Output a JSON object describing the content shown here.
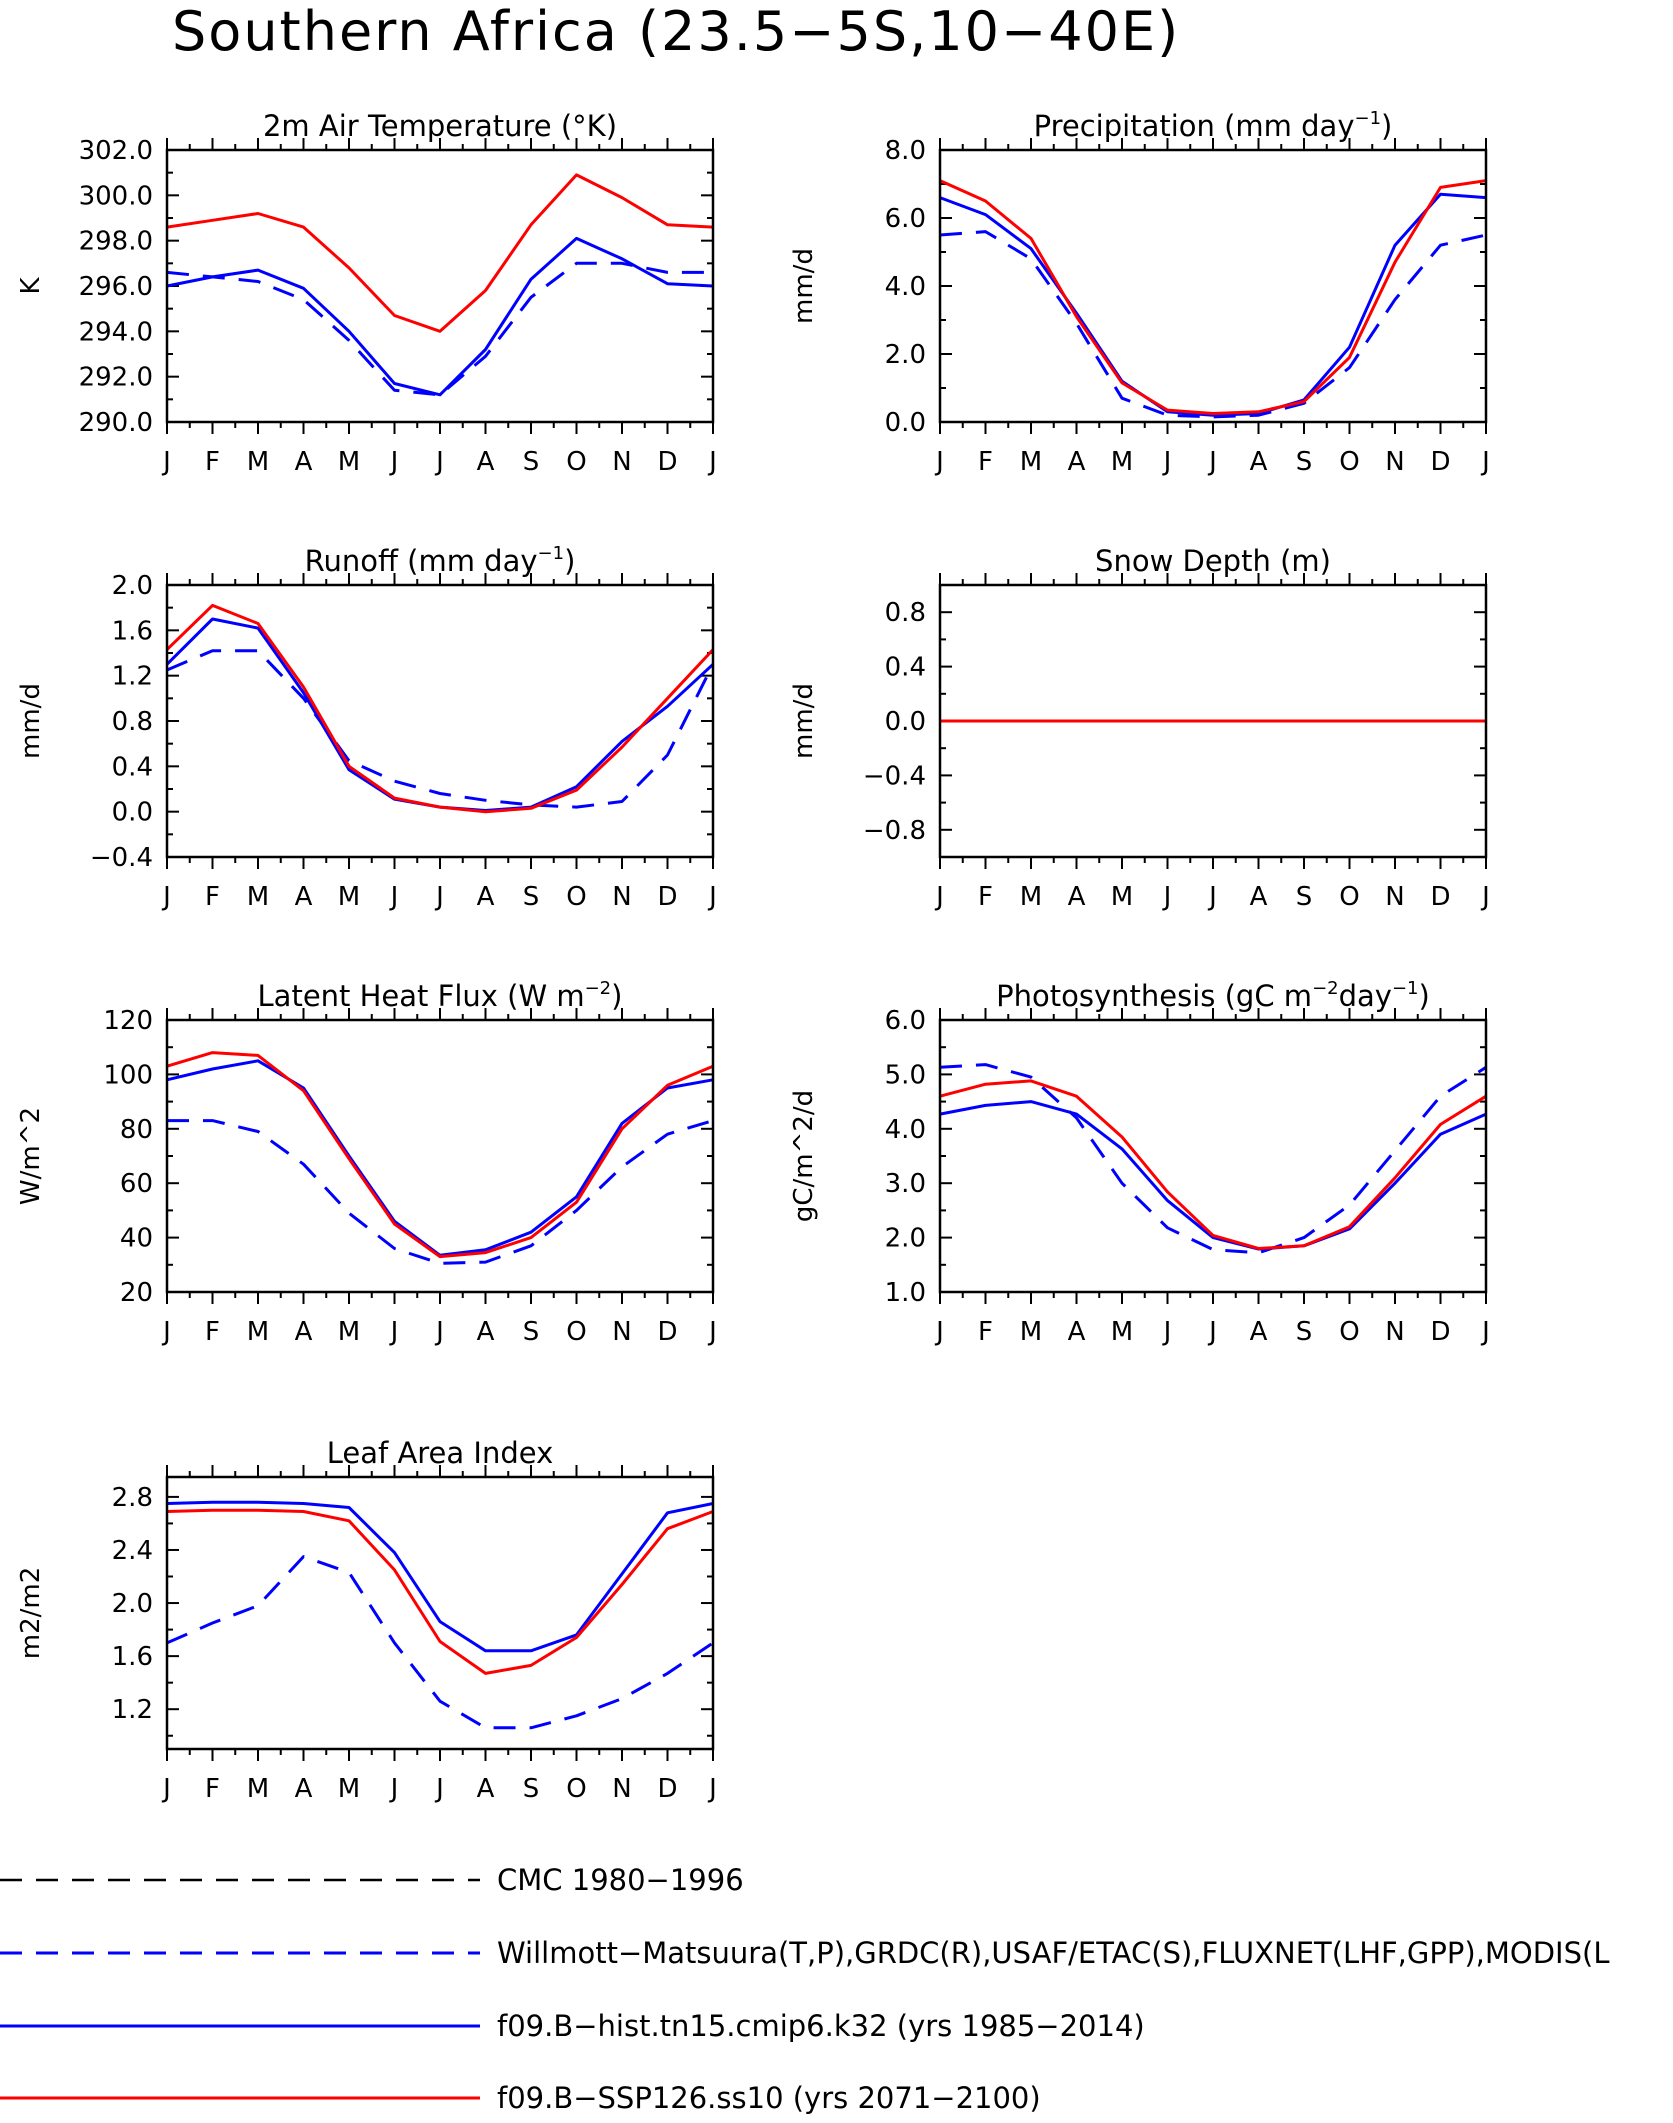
{
  "figure": {
    "title": "Southern Africa (23.5-5S,10-40E)"
  },
  "colors": {
    "obs": "#0000ff",
    "hist": "#0000ff",
    "ssp": "#ff0000",
    "cmc": "#000000"
  },
  "months": [
    "J",
    "F",
    "M",
    "A",
    "M",
    "J",
    "J",
    "A",
    "S",
    "O",
    "N",
    "D",
    "J"
  ],
  "chart_data": [
    {
      "id": "tas",
      "type": "line",
      "title": "2m Air Temperature (°K)",
      "ylabel": "K",
      "ylim": [
        290,
        302
      ],
      "yticks": [
        290,
        292,
        294,
        296,
        298,
        300,
        302
      ],
      "ytick_labels": [
        "290.0",
        "292.0",
        "294.0",
        "296.0",
        "298.0",
        "300.0",
        "302.0"
      ],
      "x": [
        "J",
        "F",
        "M",
        "A",
        "M",
        "J",
        "J",
        "A",
        "S",
        "O",
        "N",
        "D",
        "J"
      ],
      "series": [
        {
          "name": "Willmott-Matsuura(T,P),GRDC(R),USAF/ETAC(S),FLUXNET(LHF,GPP),MODIS(L",
          "style": "obs",
          "values": [
            296.6,
            296.4,
            296.2,
            295.4,
            293.6,
            291.4,
            291.2,
            292.9,
            295.5,
            297.0,
            297.0,
            296.6,
            296.6
          ]
        },
        {
          "name": "f09.B-hist.tn15.cmip6.k32 (yrs 1985-2014)",
          "style": "hist",
          "values": [
            296.0,
            296.4,
            296.7,
            295.9,
            294.0,
            291.7,
            291.2,
            293.2,
            296.3,
            298.1,
            297.2,
            296.1,
            296.0
          ]
        },
        {
          "name": "f09.B-SSP126.ss10 (yrs 2071-2100)",
          "style": "ssp",
          "values": [
            298.6,
            298.9,
            299.2,
            298.6,
            296.8,
            294.7,
            294.0,
            295.8,
            298.7,
            300.9,
            299.9,
            298.7,
            298.6
          ]
        }
      ]
    },
    {
      "id": "pr",
      "type": "line",
      "title": "Precipitation (mm day",
      "title_sup": "-1",
      "title_end": ")",
      "ylabel": "mm/d",
      "ylim": [
        0,
        8
      ],
      "yticks": [
        0,
        2,
        4,
        6,
        8
      ],
      "ytick_labels": [
        "0.0",
        "2.0",
        "4.0",
        "6.0",
        "8.0"
      ],
      "x": [
        "J",
        "F",
        "M",
        "A",
        "M",
        "J",
        "J",
        "A",
        "S",
        "O",
        "N",
        "D",
        "J"
      ],
      "series": [
        {
          "name": "Willmott-Matsuura(T,P),GRDC(R),USAF/ETAC(S),FLUXNET(LHF,GPP),MODIS(L",
          "style": "obs",
          "values": [
            5.5,
            5.6,
            4.8,
            2.9,
            0.7,
            0.2,
            0.15,
            0.2,
            0.55,
            1.6,
            3.6,
            5.2,
            5.5
          ]
        },
        {
          "name": "f09.B-hist.tn15.cmip6.k32 (yrs 1985-2014)",
          "style": "hist",
          "values": [
            6.6,
            6.1,
            5.1,
            3.2,
            1.2,
            0.3,
            0.2,
            0.25,
            0.65,
            2.2,
            5.2,
            6.7,
            6.6
          ]
        },
        {
          "name": "f09.B-SSP126.ss10 (yrs 2071-2100)",
          "style": "ssp",
          "values": [
            7.1,
            6.5,
            5.4,
            3.1,
            1.15,
            0.35,
            0.25,
            0.3,
            0.6,
            1.9,
            4.7,
            6.9,
            7.1
          ]
        }
      ]
    },
    {
      "id": "ro",
      "type": "line",
      "title": "Runoff (mm day",
      "title_sup": "-1",
      "title_end": ")",
      "ylabel": "mm/d",
      "ylim": [
        -0.4,
        2.0
      ],
      "yticks": [
        -0.4,
        0,
        0.4,
        0.8,
        1.2,
        1.6,
        2.0
      ],
      "ytick_labels": [
        "-0.4",
        "0.0",
        "0.4",
        "0.8",
        "1.2",
        "1.6",
        "2.0"
      ],
      "x": [
        "J",
        "F",
        "M",
        "A",
        "M",
        "J",
        "J",
        "A",
        "S",
        "O",
        "N",
        "D",
        "J"
      ],
      "series": [
        {
          "name": "Willmott-Matsuura(T,P),GRDC(R),USAF/ETAC(S),FLUXNET(LHF,GPP),MODIS(L",
          "style": "obs",
          "values": [
            1.25,
            1.42,
            1.42,
            1.0,
            0.45,
            0.27,
            0.16,
            0.1,
            0.06,
            0.04,
            0.09,
            0.5,
            1.3
          ]
        },
        {
          "name": "f09.B-hist.tn15.cmip6.k32 (yrs 1985-2014)",
          "style": "hist",
          "values": [
            1.3,
            1.7,
            1.62,
            1.05,
            0.37,
            0.11,
            0.04,
            0.01,
            0.04,
            0.22,
            0.62,
            0.93,
            1.3
          ]
        },
        {
          "name": "f09.B-SSP126.ss10 (yrs 2071-2100)",
          "style": "ssp",
          "values": [
            1.43,
            1.82,
            1.66,
            1.1,
            0.4,
            0.12,
            0.04,
            0.0,
            0.03,
            0.19,
            0.57,
            1.0,
            1.43
          ]
        }
      ]
    },
    {
      "id": "snd",
      "type": "line",
      "title": "Snow Depth (m)",
      "ylabel": "mm/d",
      "ylim": [
        -1.0,
        1.0
      ],
      "yticks": [
        -0.8,
        -0.4,
        0,
        0.4,
        0.8
      ],
      "ytick_labels": [
        "-0.8",
        "-0.4",
        "0.0",
        "0.4",
        "0.8"
      ],
      "x": [
        "J",
        "F",
        "M",
        "A",
        "M",
        "J",
        "J",
        "A",
        "S",
        "O",
        "N",
        "D",
        "J"
      ],
      "series": [
        {
          "name": "Willmott-Matsuura(T,P),GRDC(R),USAF/ETAC(S),FLUXNET(LHF,GPP),MODIS(L",
          "style": "obs",
          "values": [
            0,
            0,
            0,
            0,
            0,
            0,
            0,
            0,
            0,
            0,
            0,
            0,
            0
          ]
        },
        {
          "name": "f09.B-hist.tn15.cmip6.k32 (yrs 1985-2014)",
          "style": "hist",
          "values": [
            0,
            0,
            0,
            0,
            0,
            0,
            0,
            0,
            0,
            0,
            0,
            0,
            0
          ]
        },
        {
          "name": "f09.B-SSP126.ss10 (yrs 2071-2100)",
          "style": "ssp",
          "values": [
            0,
            0,
            0,
            0,
            0,
            0,
            0,
            0,
            0,
            0,
            0,
            0,
            0
          ]
        }
      ]
    },
    {
      "id": "lhf",
      "type": "line",
      "title": "Latent Heat Flux (W m",
      "title_sup": "-2",
      "title_end": ")",
      "ylabel": "W/m^2",
      "ylim": [
        20,
        120
      ],
      "yticks": [
        20,
        40,
        60,
        80,
        100,
        120
      ],
      "ytick_labels": [
        "20",
        "40",
        "60",
        "80",
        "100",
        "120"
      ],
      "x": [
        "J",
        "F",
        "M",
        "A",
        "M",
        "J",
        "J",
        "A",
        "S",
        "O",
        "N",
        "D",
        "J"
      ],
      "series": [
        {
          "name": "Willmott-Matsuura(T,P),GRDC(R),USAF/ETAC(S),FLUXNET(LHF,GPP),MODIS(L",
          "style": "obs",
          "values": [
            83,
            83,
            79,
            67,
            49,
            36,
            30.5,
            31,
            37,
            50,
            66,
            78,
            83
          ]
        },
        {
          "name": "f09.B-hist.tn15.cmip6.k32 (yrs 1985-2014)",
          "style": "hist",
          "values": [
            98,
            102,
            105,
            95,
            70,
            46,
            33.5,
            35.5,
            42,
            55,
            82,
            95,
            98
          ]
        },
        {
          "name": "f09.B-SSP126.ss10 (yrs 2071-2100)",
          "style": "ssp",
          "values": [
            103,
            108,
            107,
            94,
            69,
            45,
            33,
            34.5,
            40,
            53,
            80,
            96,
            103
          ]
        }
      ]
    },
    {
      "id": "gpp",
      "type": "line",
      "title": "Photosynthesis (gC m",
      "title_sup": "-2",
      "title_mid": "day",
      "title_sup2": "-1",
      "title_end": ")",
      "ylabel": "gC/m^2/d",
      "ylim": [
        1.0,
        6.0
      ],
      "yticks": [
        1,
        2,
        3,
        4,
        5,
        6
      ],
      "ytick_labels": [
        "1.0",
        "2.0",
        "3.0",
        "4.0",
        "5.0",
        "6.0"
      ],
      "x": [
        "J",
        "F",
        "M",
        "A",
        "M",
        "J",
        "J",
        "A",
        "S",
        "O",
        "N",
        "D",
        "J"
      ],
      "series": [
        {
          "name": "Willmott-Matsuura(T,P),GRDC(R),USAF/ETAC(S),FLUXNET(LHF,GPP),MODIS(L",
          "style": "obs",
          "values": [
            5.13,
            5.18,
            4.95,
            4.2,
            3.0,
            2.18,
            1.78,
            1.72,
            2.0,
            2.6,
            3.6,
            4.6,
            5.13
          ]
        },
        {
          "name": "f09.B-hist.tn15.cmip6.k32 (yrs 1985-2014)",
          "style": "hist",
          "values": [
            4.27,
            4.43,
            4.5,
            4.27,
            3.63,
            2.68,
            2.0,
            1.79,
            1.85,
            2.16,
            3.0,
            3.9,
            4.27
          ]
        },
        {
          "name": "f09.B-SSP126.ss10 (yrs 2071-2100)",
          "style": "ssp",
          "values": [
            4.6,
            4.82,
            4.88,
            4.6,
            3.85,
            2.84,
            2.04,
            1.8,
            1.85,
            2.2,
            3.1,
            4.08,
            4.6
          ]
        }
      ]
    },
    {
      "id": "lai",
      "type": "line",
      "title": "Leaf Area Index",
      "ylabel": "m2/m2",
      "ylim": [
        0.9,
        2.95
      ],
      "yticks": [
        1.2,
        1.6,
        2.0,
        2.4,
        2.8
      ],
      "ytick_labels": [
        "1.2",
        "1.6",
        "2.0",
        "2.4",
        "2.8"
      ],
      "x": [
        "J",
        "F",
        "M",
        "A",
        "M",
        "J",
        "J",
        "A",
        "S",
        "O",
        "N",
        "D",
        "J"
      ],
      "series": [
        {
          "name": "Willmott-Matsuura(T,P),GRDC(R),USAF/ETAC(S),FLUXNET(LHF,GPP),MODIS(L",
          "style": "obs",
          "values": [
            1.7,
            1.85,
            1.98,
            2.35,
            2.23,
            1.7,
            1.26,
            1.06,
            1.06,
            1.15,
            1.28,
            1.47,
            1.7
          ]
        },
        {
          "name": "f09.B-hist.tn15.cmip6.k32 (yrs 1985-2014)",
          "style": "hist",
          "values": [
            2.75,
            2.76,
            2.76,
            2.75,
            2.72,
            2.38,
            1.86,
            1.64,
            1.64,
            1.76,
            2.22,
            2.68,
            2.75
          ]
        },
        {
          "name": "f09.B-SSP126.ss10 (yrs 2071-2100)",
          "style": "ssp",
          "values": [
            2.69,
            2.7,
            2.7,
            2.69,
            2.62,
            2.25,
            1.71,
            1.47,
            1.53,
            1.74,
            2.14,
            2.56,
            2.69
          ]
        }
      ]
    }
  ],
  "legend": [
    {
      "label": "CMC 1980-1996",
      "style": "cmc"
    },
    {
      "label": "Willmott-Matsuura(T,P),GRDC(R),USAF/ETAC(S),FLUXNET(LHF,GPP),MODIS(L",
      "style": "obs"
    },
    {
      "label": "f09.B-hist.tn15.cmip6.k32 (yrs 1985-2014)",
      "style": "hist"
    },
    {
      "label": "f09.B-SSP126.ss10 (yrs 2071-2100)",
      "style": "ssp"
    }
  ]
}
